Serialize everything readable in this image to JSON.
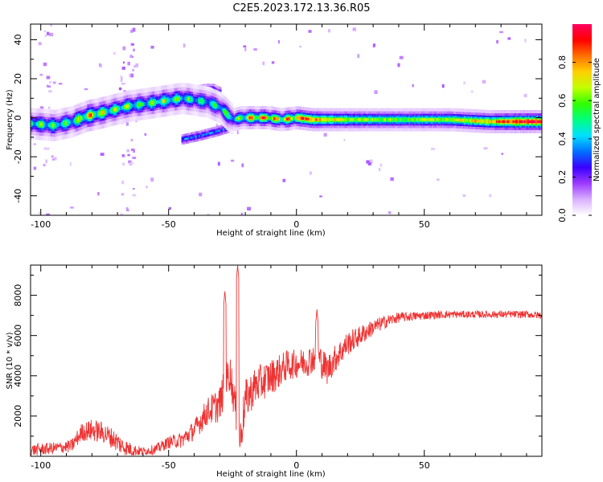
{
  "title": "C2E5.2023.172.13.36.R05",
  "chart_data": [
    {
      "type": "heatmap",
      "xlabel": "Height of straight line (km)",
      "ylabel": "Frequency (Hz)",
      "xlim": [
        -104,
        96
      ],
      "ylim": [
        -50,
        48
      ],
      "xticks": [
        -100,
        -50,
        0,
        50
      ],
      "yticks": [
        -40,
        -20,
        0,
        20,
        40
      ],
      "colorbar": {
        "label": "Normalized spectral amplitude",
        "ticks": [
          0.0,
          0.2,
          0.4,
          0.6,
          0.8
        ],
        "range": [
          0,
          1
        ],
        "colormap": [
          "#ffffff",
          "#d9b0ff",
          "#9d3bff",
          "#3a00ff",
          "#0070ff",
          "#00e0ff",
          "#00ff80",
          "#30ff00",
          "#c0ff00",
          "#ffd000",
          "#ff7000",
          "#ff0000",
          "#ff0060"
        ]
      },
      "ridge": {
        "x": [
          -104,
          -95,
          -88,
          -82,
          -78,
          -72,
          -66,
          -60,
          -55,
          -50,
          -45,
          -40,
          -35,
          -30,
          -27,
          -25,
          -22,
          -18,
          -12,
          -6,
          0,
          6,
          12,
          20,
          30,
          45,
          60,
          75,
          88,
          96
        ],
        "y": [
          -3,
          -4,
          -2,
          1,
          2,
          4,
          6,
          7,
          8,
          9,
          10,
          9,
          8,
          5,
          1,
          -1,
          0,
          0,
          0,
          -1,
          0,
          -1,
          -1,
          -1,
          -1,
          -1,
          -1,
          -2,
          -2,
          -2
        ],
        "amplitude": [
          0.6,
          0.55,
          0.55,
          0.8,
          0.7,
          0.6,
          0.6,
          0.55,
          0.6,
          0.6,
          0.55,
          0.5,
          0.5,
          0.5,
          0.55,
          0.5,
          0.6,
          0.85,
          0.85,
          0.8,
          0.9,
          0.8,
          0.7,
          0.65,
          0.6,
          0.6,
          0.65,
          0.75,
          0.95,
          0.95
        ]
      },
      "branches": [
        {
          "x": [
            -45,
            -38,
            -32,
            -27,
            -25
          ],
          "y": [
            -11,
            -9,
            -7,
            -5,
            -2
          ],
          "amplitude": 0.35
        },
        {
          "x": [
            -40,
            -36,
            -33,
            -30
          ],
          "y": [
            14,
            15,
            15,
            13
          ],
          "amplitude": 0.3
        }
      ]
    },
    {
      "type": "line",
      "xlabel": "Height of straight line (km)",
      "ylabel": "SNR (10 * v/v)",
      "xlim": [
        -104,
        96
      ],
      "ylim": [
        0,
        9500
      ],
      "xticks": [
        -100,
        -50,
        0,
        50
      ],
      "yticks": [
        2000,
        4000,
        6000,
        8000
      ],
      "color": "#ee3333",
      "trend": {
        "x": [
          -104,
          -95,
          -88,
          -84,
          -80,
          -76,
          -72,
          -68,
          -64,
          -60,
          -55,
          -50,
          -45,
          -40,
          -35,
          -30,
          -28,
          -26,
          -24,
          -22,
          -20,
          -16,
          -12,
          -8,
          -4,
          0,
          4,
          8,
          12,
          16,
          20,
          25,
          30,
          35,
          40,
          50,
          60,
          70,
          80,
          90,
          96
        ],
        "y": [
          300,
          400,
          500,
          1200,
          1300,
          1200,
          900,
          500,
          300,
          250,
          350,
          700,
          800,
          1300,
          2200,
          2600,
          3500,
          4200,
          2500,
          800,
          2800,
          3500,
          3800,
          4100,
          4500,
          4600,
          4700,
          5000,
          4300,
          5000,
          5600,
          6000,
          6400,
          6700,
          6900,
          7000,
          7050,
          7050,
          7050,
          7050,
          7000
        ]
      },
      "noise": {
        "x": [
          -104,
          -90,
          -80,
          -70,
          -60,
          -50,
          -40,
          -30,
          -20,
          -10,
          0,
          10,
          20,
          30,
          40,
          60,
          96
        ],
        "amplitude": [
          300,
          300,
          550,
          500,
          200,
          300,
          500,
          900,
          1000,
          900,
          700,
          800,
          600,
          400,
          250,
          180,
          180
        ]
      },
      "peaks": [
        {
          "x": -23,
          "y": 9500
        },
        {
          "x": -28,
          "y": 8200
        },
        {
          "x": 8,
          "y": 7300
        }
      ]
    }
  ]
}
